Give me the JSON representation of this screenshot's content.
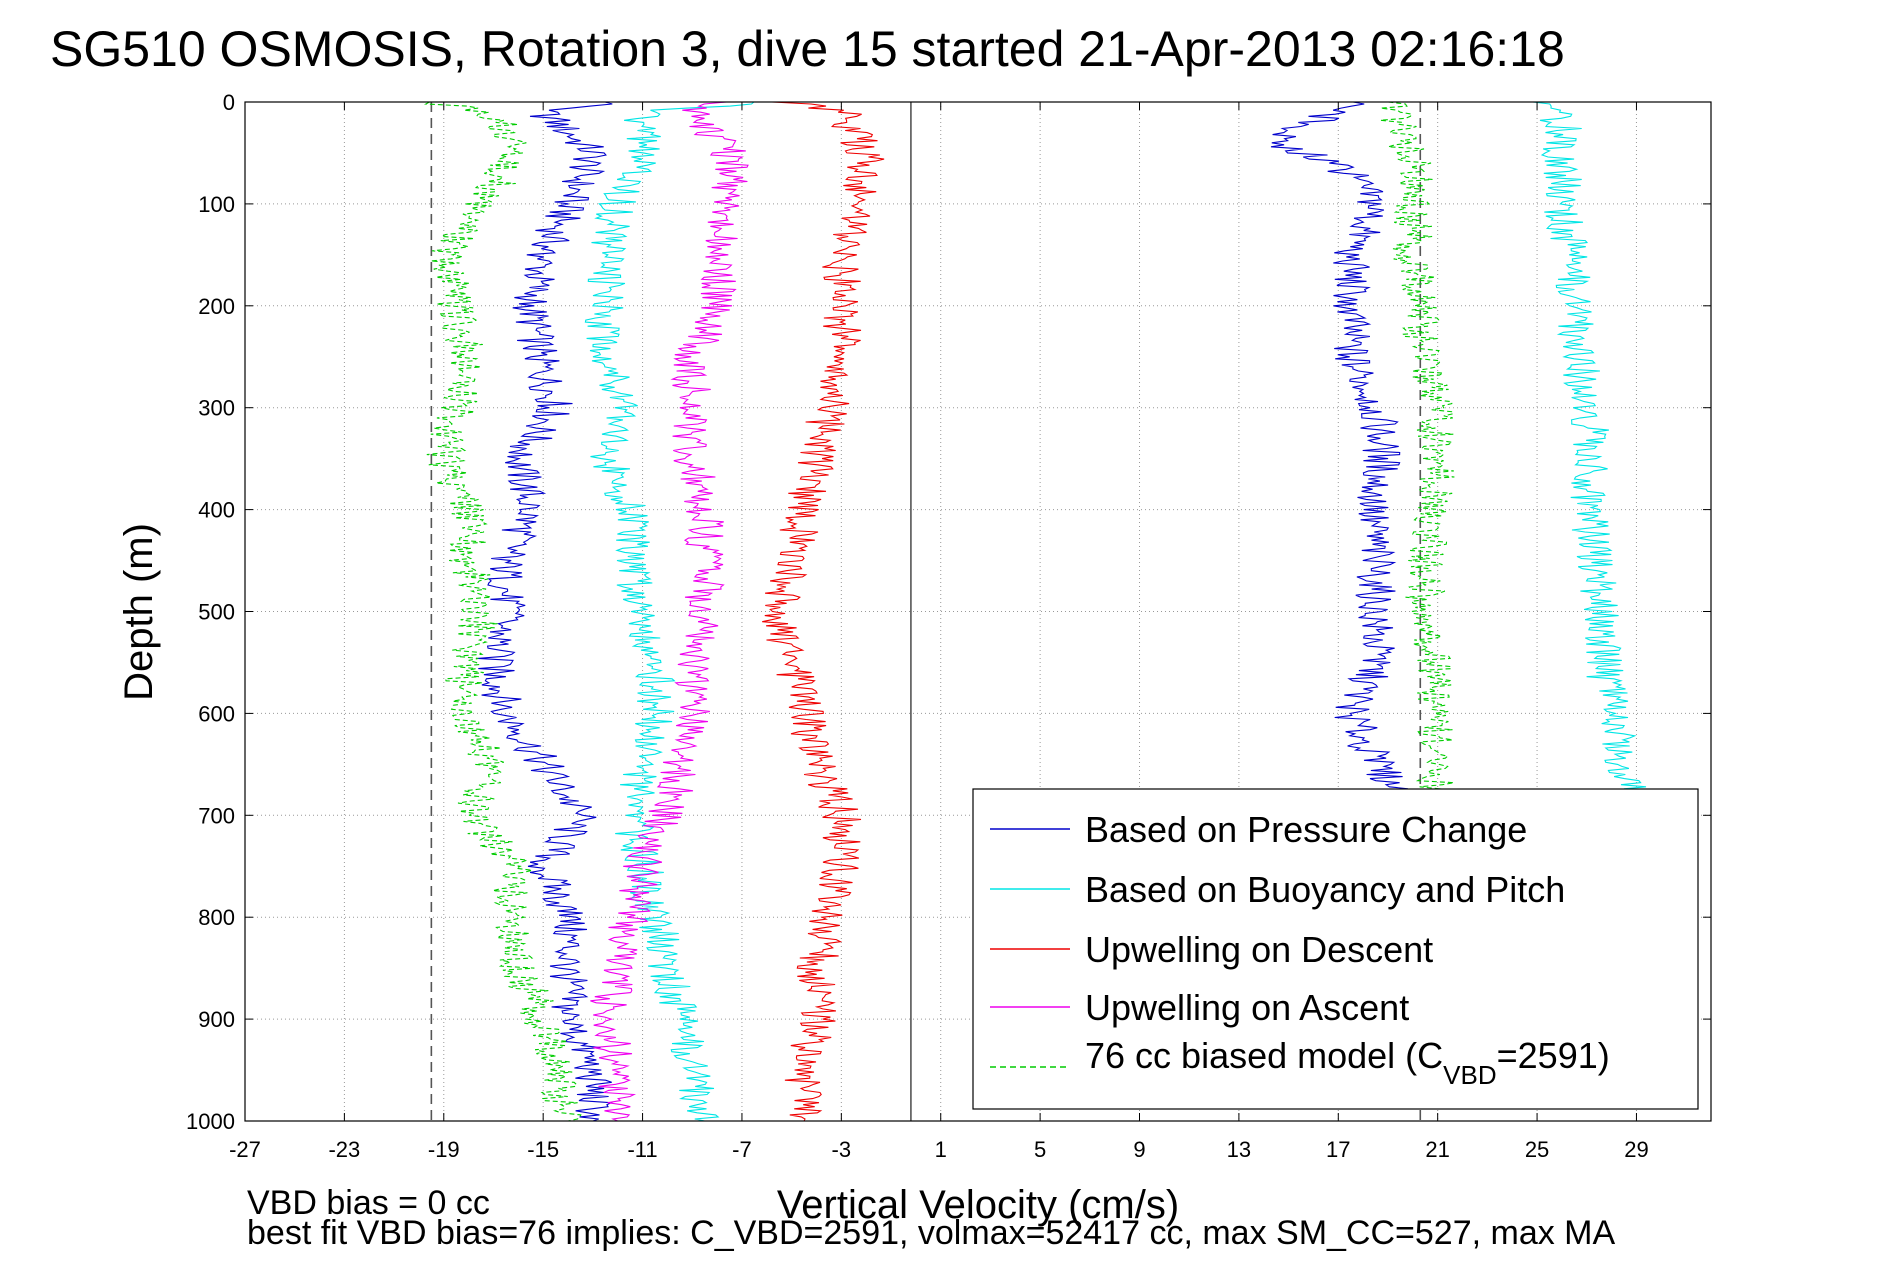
{
  "chart_data": {
    "type": "line",
    "title": "SG510 OSMOSIS, Rotation 3, dive 15 started 21-Apr-2013 02:16:18",
    "xlabel": "Vertical Velocity (cm/s)",
    "ylabel": "Depth (m)",
    "xlim": [
      -27,
      32
    ],
    "ylim": [
      0,
      1000
    ],
    "y_reversed": true,
    "xticks": [
      -27,
      -23,
      -19,
      -15,
      -11,
      -7,
      -3,
      1,
      5,
      9,
      13,
      17,
      21,
      25,
      29
    ],
    "yticks": [
      0,
      100,
      200,
      300,
      400,
      500,
      600,
      700,
      800,
      900,
      1000
    ],
    "grid": true,
    "legend_position": "bottom-right",
    "footer_lines": [
      "VBD bias = 0 cc",
      "best fit VBD bias=76 implies: C_VBD=2591, volmax=52417 cc, max SM_CC=527, max MA"
    ],
    "reference_lines": [
      {
        "x": -19.5,
        "style": "dashed",
        "color": "#555555"
      },
      {
        "x": -0.2,
        "style": "solid",
        "color": "#555555"
      },
      {
        "x": 20.3,
        "style": "dashed",
        "color": "#555555"
      }
    ],
    "series": [
      {
        "name": "Based on Pressure Change",
        "color": "#0000cc",
        "style": "solid",
        "segments": [
          {
            "depth": [
              0,
              10,
              50,
              100,
              150,
              200,
              250,
              300,
              350,
              400,
              450,
              500,
              550,
              600,
              650,
              700,
              750,
              800,
              850,
              900,
              950,
              1000
            ],
            "x": [
              -12,
              -15,
              -13,
              -14,
              -15,
              -15.5,
              -15.2,
              -14.5,
              -16,
              -15.5,
              -16.5,
              -16.5,
              -17,
              -16.5,
              -15,
              -13.5,
              -15,
              -14,
              -14,
              -14,
              -13,
              -13
            ]
          },
          {
            "depth": [
              0,
              20,
              40,
              60,
              100,
              150,
              200,
              250,
              300,
              350,
              400,
              450,
              500,
              550,
              600,
              650,
              680
            ],
            "x": [
              17.5,
              16,
              14,
              17,
              18.5,
              17.5,
              17.5,
              17.5,
              18.5,
              18.8,
              18.3,
              18.5,
              18.5,
              18.5,
              17.5,
              18.5,
              19.5
            ]
          }
        ]
      },
      {
        "name": "Based on Buoyancy and Pitch",
        "color": "#00e5e5",
        "style": "solid",
        "segments": [
          {
            "depth": [
              0,
              10,
              50,
              100,
              150,
              200,
              250,
              300,
              350,
              400,
              450,
              500,
              550,
              600,
              650,
              700,
              750,
              800,
              850,
              900,
              950,
              1000
            ],
            "x": [
              -6,
              -11,
              -11,
              -12,
              -12.5,
              -12.5,
              -12.5,
              -11.5,
              -12.5,
              -11.5,
              -11.5,
              -11,
              -10.5,
              -10.5,
              -11,
              -11.5,
              -11,
              -10.5,
              -10,
              -9.5,
              -9,
              -8.5
            ]
          },
          {
            "depth": [
              0,
              20,
              60,
              100,
              150,
              200,
              250,
              300,
              350,
              400,
              450,
              500,
              550,
              600,
              650,
              680
            ],
            "x": [
              25,
              26,
              26,
              26,
              26.3,
              26.5,
              26.7,
              27,
              27.3,
              27,
              27.3,
              27.5,
              27.7,
              28,
              28.5,
              29
            ]
          }
        ]
      },
      {
        "name": "Upwelling on Descent",
        "color": "#ee0000",
        "style": "solid",
        "segments": [
          {
            "depth": [
              0,
              10,
              50,
              100,
              150,
              200,
              250,
              300,
              350,
              400,
              450,
              500,
              550,
              600,
              650,
              700,
              750,
              800,
              850,
              900,
              950,
              1000
            ],
            "x": [
              -5,
              -3,
              -2,
              -2.5,
              -3,
              -3,
              -3,
              -3.5,
              -4,
              -4.5,
              -5,
              -5.5,
              -5,
              -4.5,
              -4,
              -3,
              -3,
              -3.5,
              -4,
              -4,
              -4.5,
              -4.5
            ]
          }
        ]
      },
      {
        "name": "Upwelling on Ascent",
        "color": "#ee00ee",
        "style": "solid",
        "segments": [
          {
            "depth": [
              0,
              10,
              50,
              100,
              150,
              200,
              250,
              300,
              350,
              400,
              450,
              500,
              550,
              600,
              650,
              700,
              750,
              800,
              850,
              900,
              950,
              1000
            ],
            "x": [
              -8,
              -9,
              -7.5,
              -7.5,
              -8,
              -8,
              -9,
              -9,
              -9,
              -8.5,
              -8.5,
              -8.5,
              -9,
              -9,
              -9.5,
              -10,
              -11,
              -11.5,
              -12,
              -12.5,
              -12,
              -12
            ]
          }
        ]
      },
      {
        "name": "76 cc biased model (CVBD=2591)",
        "color": "#00cc00",
        "style": "dashed",
        "segments": [
          {
            "depth": [
              0,
              10,
              50,
              100,
              150,
              200,
              250,
              300,
              350,
              400,
              450,
              500,
              550,
              600,
              650,
              700,
              750,
              800,
              850,
              900,
              950,
              1000
            ],
            "x": [
              -20,
              -17,
              -16,
              -17.5,
              -19,
              -18.5,
              -18,
              -18.5,
              -19,
              -18,
              -18,
              -17.5,
              -18,
              -18.5,
              -17,
              -18,
              -16,
              -16.5,
              -16,
              -15,
              -14.5,
              -14
            ]
          },
          {
            "depth": [
              0,
              20,
              60,
              100,
              150,
              200,
              250,
              300,
              350,
              400,
              450,
              500,
              550,
              600,
              650,
              680
            ],
            "x": [
              19,
              19.5,
              20,
              20,
              20,
              20.3,
              20.5,
              20.8,
              21,
              20.8,
              20.5,
              20.5,
              20.8,
              21,
              21,
              21
            ]
          }
        ]
      }
    ]
  },
  "legend": {
    "entries": [
      {
        "text": "Based on Pressure Change"
      },
      {
        "text": "Based on Buoyancy and Pitch"
      },
      {
        "text": "Upwelling on Descent"
      },
      {
        "text": "Upwelling on Ascent"
      },
      {
        "text_main": "76 cc biased model (C",
        "text_sub": "VBD",
        "text_tail": "=2591)"
      }
    ]
  }
}
